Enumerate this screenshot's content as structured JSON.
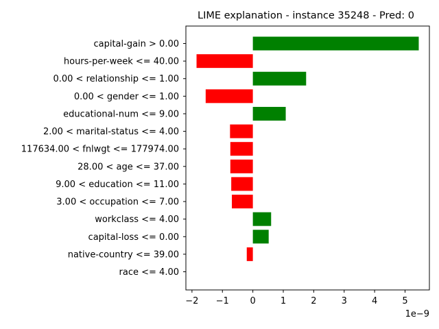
{
  "chart_data": {
    "type": "bar",
    "orientation": "horizontal",
    "title": "LIME explanation - instance 35248 - Pred: 0",
    "x_offset_label": "1e−9",
    "xlim": [
      -2.2,
      5.8
    ],
    "x_scale_multiplier": 1e-09,
    "x_ticks": [
      -2,
      -1,
      0,
      1,
      2,
      3,
      4,
      5
    ],
    "x_tick_labels": [
      "−2",
      "−1",
      "0",
      "1",
      "2",
      "3",
      "4",
      "5"
    ],
    "categories": [
      "capital-gain > 0.00",
      "hours-per-week <= 40.00",
      "0.00 < relationship <= 1.00",
      "0.00 < gender <= 1.00",
      "educational-num <= 9.00",
      "2.00 < marital-status <= 4.00",
      "117634.00 < fnlwgt <= 177974.00",
      "28.00 < age <= 37.00",
      "9.00 < education <= 11.00",
      "3.00 < occupation <= 7.00",
      "workclass <= 4.00",
      "capital-loss <= 0.00",
      "native-country <= 39.00",
      "race <= 4.00"
    ],
    "values": [
      5.45,
      -1.85,
      1.75,
      -1.55,
      1.08,
      -0.75,
      -0.74,
      -0.74,
      -0.71,
      -0.69,
      0.6,
      0.52,
      -0.2,
      0.0
    ],
    "colors": {
      "positive": "#008000",
      "negative": "#ff0000"
    },
    "grid": false,
    "legend": "none"
  }
}
